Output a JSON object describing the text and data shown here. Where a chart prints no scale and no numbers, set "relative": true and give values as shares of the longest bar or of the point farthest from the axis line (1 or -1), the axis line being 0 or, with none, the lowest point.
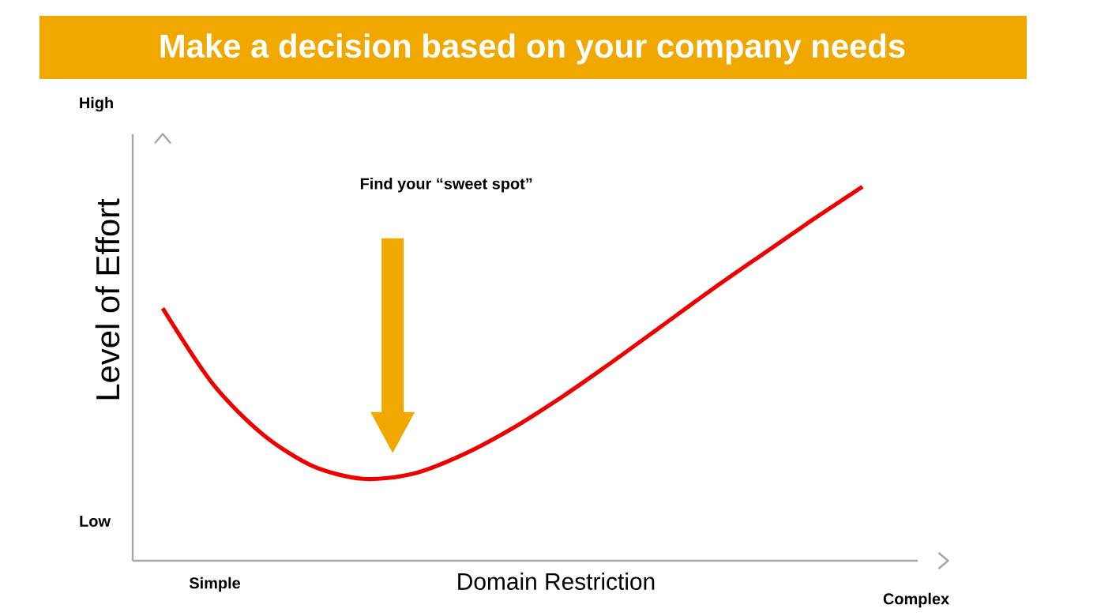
{
  "chart_data": {
    "type": "line",
    "title": "Make a decision based on your company needs",
    "xlabel": "Domain Restriction",
    "ylabel": "Level of Effort",
    "relative": true,
    "color": "#ee0000",
    "categories": [
      null,
      null,
      null,
      null,
      null,
      null,
      null,
      null,
      null,
      null,
      null,
      null,
      null,
      null,
      null
    ],
    "values": [
      0.675,
      0.473,
      0.338,
      0.253,
      0.219,
      0.232,
      0.283,
      0.354,
      0.439,
      0.532,
      0.629,
      0.726,
      0.819,
      0.911,
      1.0
    ],
    "annotations": [
      "High",
      "Low",
      "Simple",
      "Complex",
      "Find your “sweet spot”"
    ]
  }
}
